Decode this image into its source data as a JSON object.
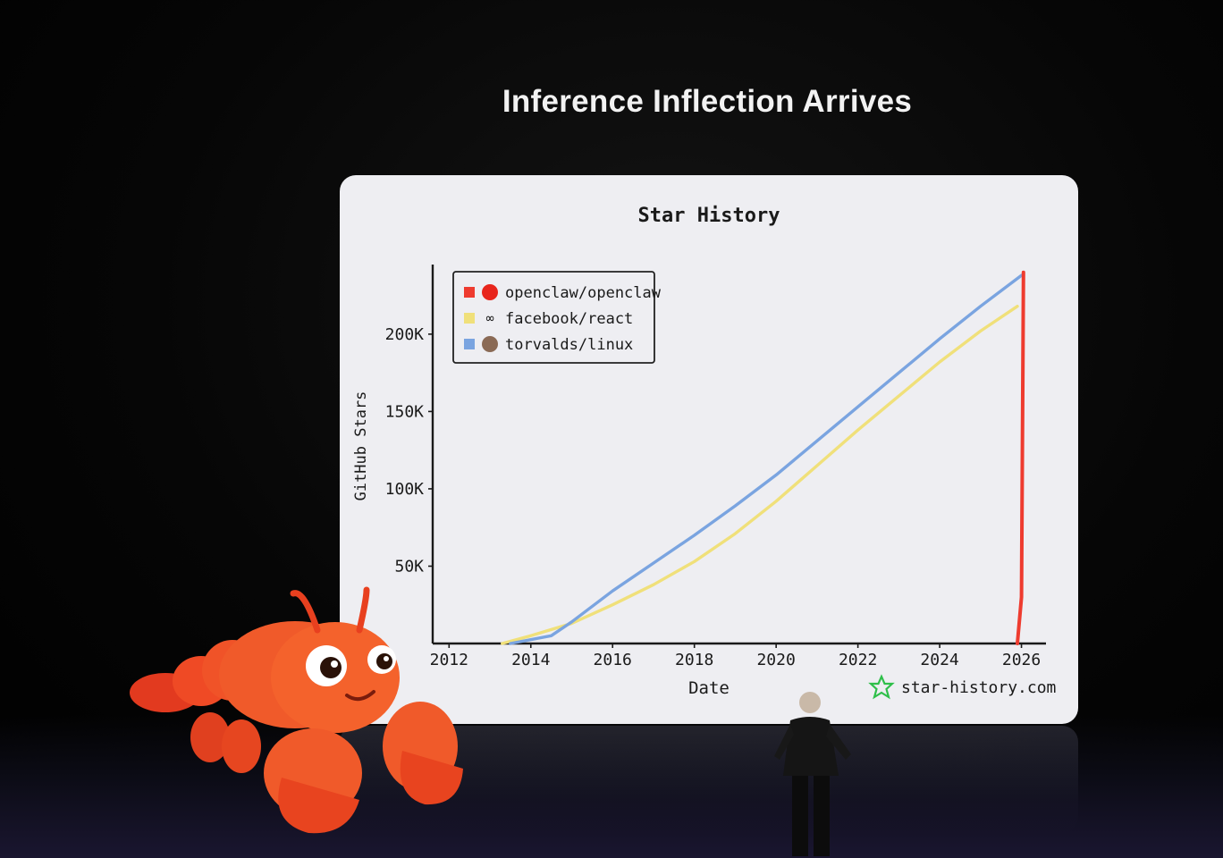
{
  "slide": {
    "title": "Inference Inflection Arrives"
  },
  "chart_data": {
    "type": "line",
    "title": "Star History",
    "xlabel": "Date",
    "ylabel": "GitHub Stars",
    "x_ticks": [
      "2012",
      "2014",
      "2016",
      "2018",
      "2020",
      "2022",
      "2024",
      "2026"
    ],
    "y_ticks": [
      "50K",
      "100K",
      "150K",
      "200K"
    ],
    "xlim": [
      2011.6,
      2026.6
    ],
    "ylim": [
      0,
      245000
    ],
    "grid": false,
    "legend_position": "top-left",
    "watermark": "star-history.com",
    "series": [
      {
        "name": "openclaw/openclaw",
        "color": "#ee3b2f",
        "icon": "red-avatar-icon",
        "points": [
          [
            2025.9,
            0
          ],
          [
            2026.0,
            30000
          ],
          [
            2026.05,
            240000
          ]
        ]
      },
      {
        "name": "facebook/react",
        "color": "#f0e07a",
        "icon": "meta-infinity-icon",
        "points": [
          [
            2013.3,
            0
          ],
          [
            2014.0,
            5000
          ],
          [
            2015.0,
            13000
          ],
          [
            2016.0,
            25000
          ],
          [
            2017.0,
            38000
          ],
          [
            2018.0,
            53000
          ],
          [
            2019.0,
            71000
          ],
          [
            2020.0,
            92000
          ],
          [
            2021.0,
            115000
          ],
          [
            2022.0,
            138000
          ],
          [
            2023.0,
            160000
          ],
          [
            2024.0,
            182000
          ],
          [
            2025.0,
            202000
          ],
          [
            2025.9,
            218000
          ]
        ]
      },
      {
        "name": "torvalds/linux",
        "color": "#7aa4e0",
        "icon": "linus-avatar-icon",
        "points": [
          [
            2013.5,
            0
          ],
          [
            2014.5,
            5000
          ],
          [
            2015.0,
            14000
          ],
          [
            2016.0,
            34000
          ],
          [
            2017.0,
            52000
          ],
          [
            2018.0,
            70000
          ],
          [
            2019.0,
            89000
          ],
          [
            2020.0,
            109000
          ],
          [
            2021.0,
            131000
          ],
          [
            2022.0,
            153000
          ],
          [
            2023.0,
            175000
          ],
          [
            2024.0,
            197000
          ],
          [
            2025.0,
            218000
          ],
          [
            2026.0,
            238000
          ]
        ]
      }
    ]
  }
}
